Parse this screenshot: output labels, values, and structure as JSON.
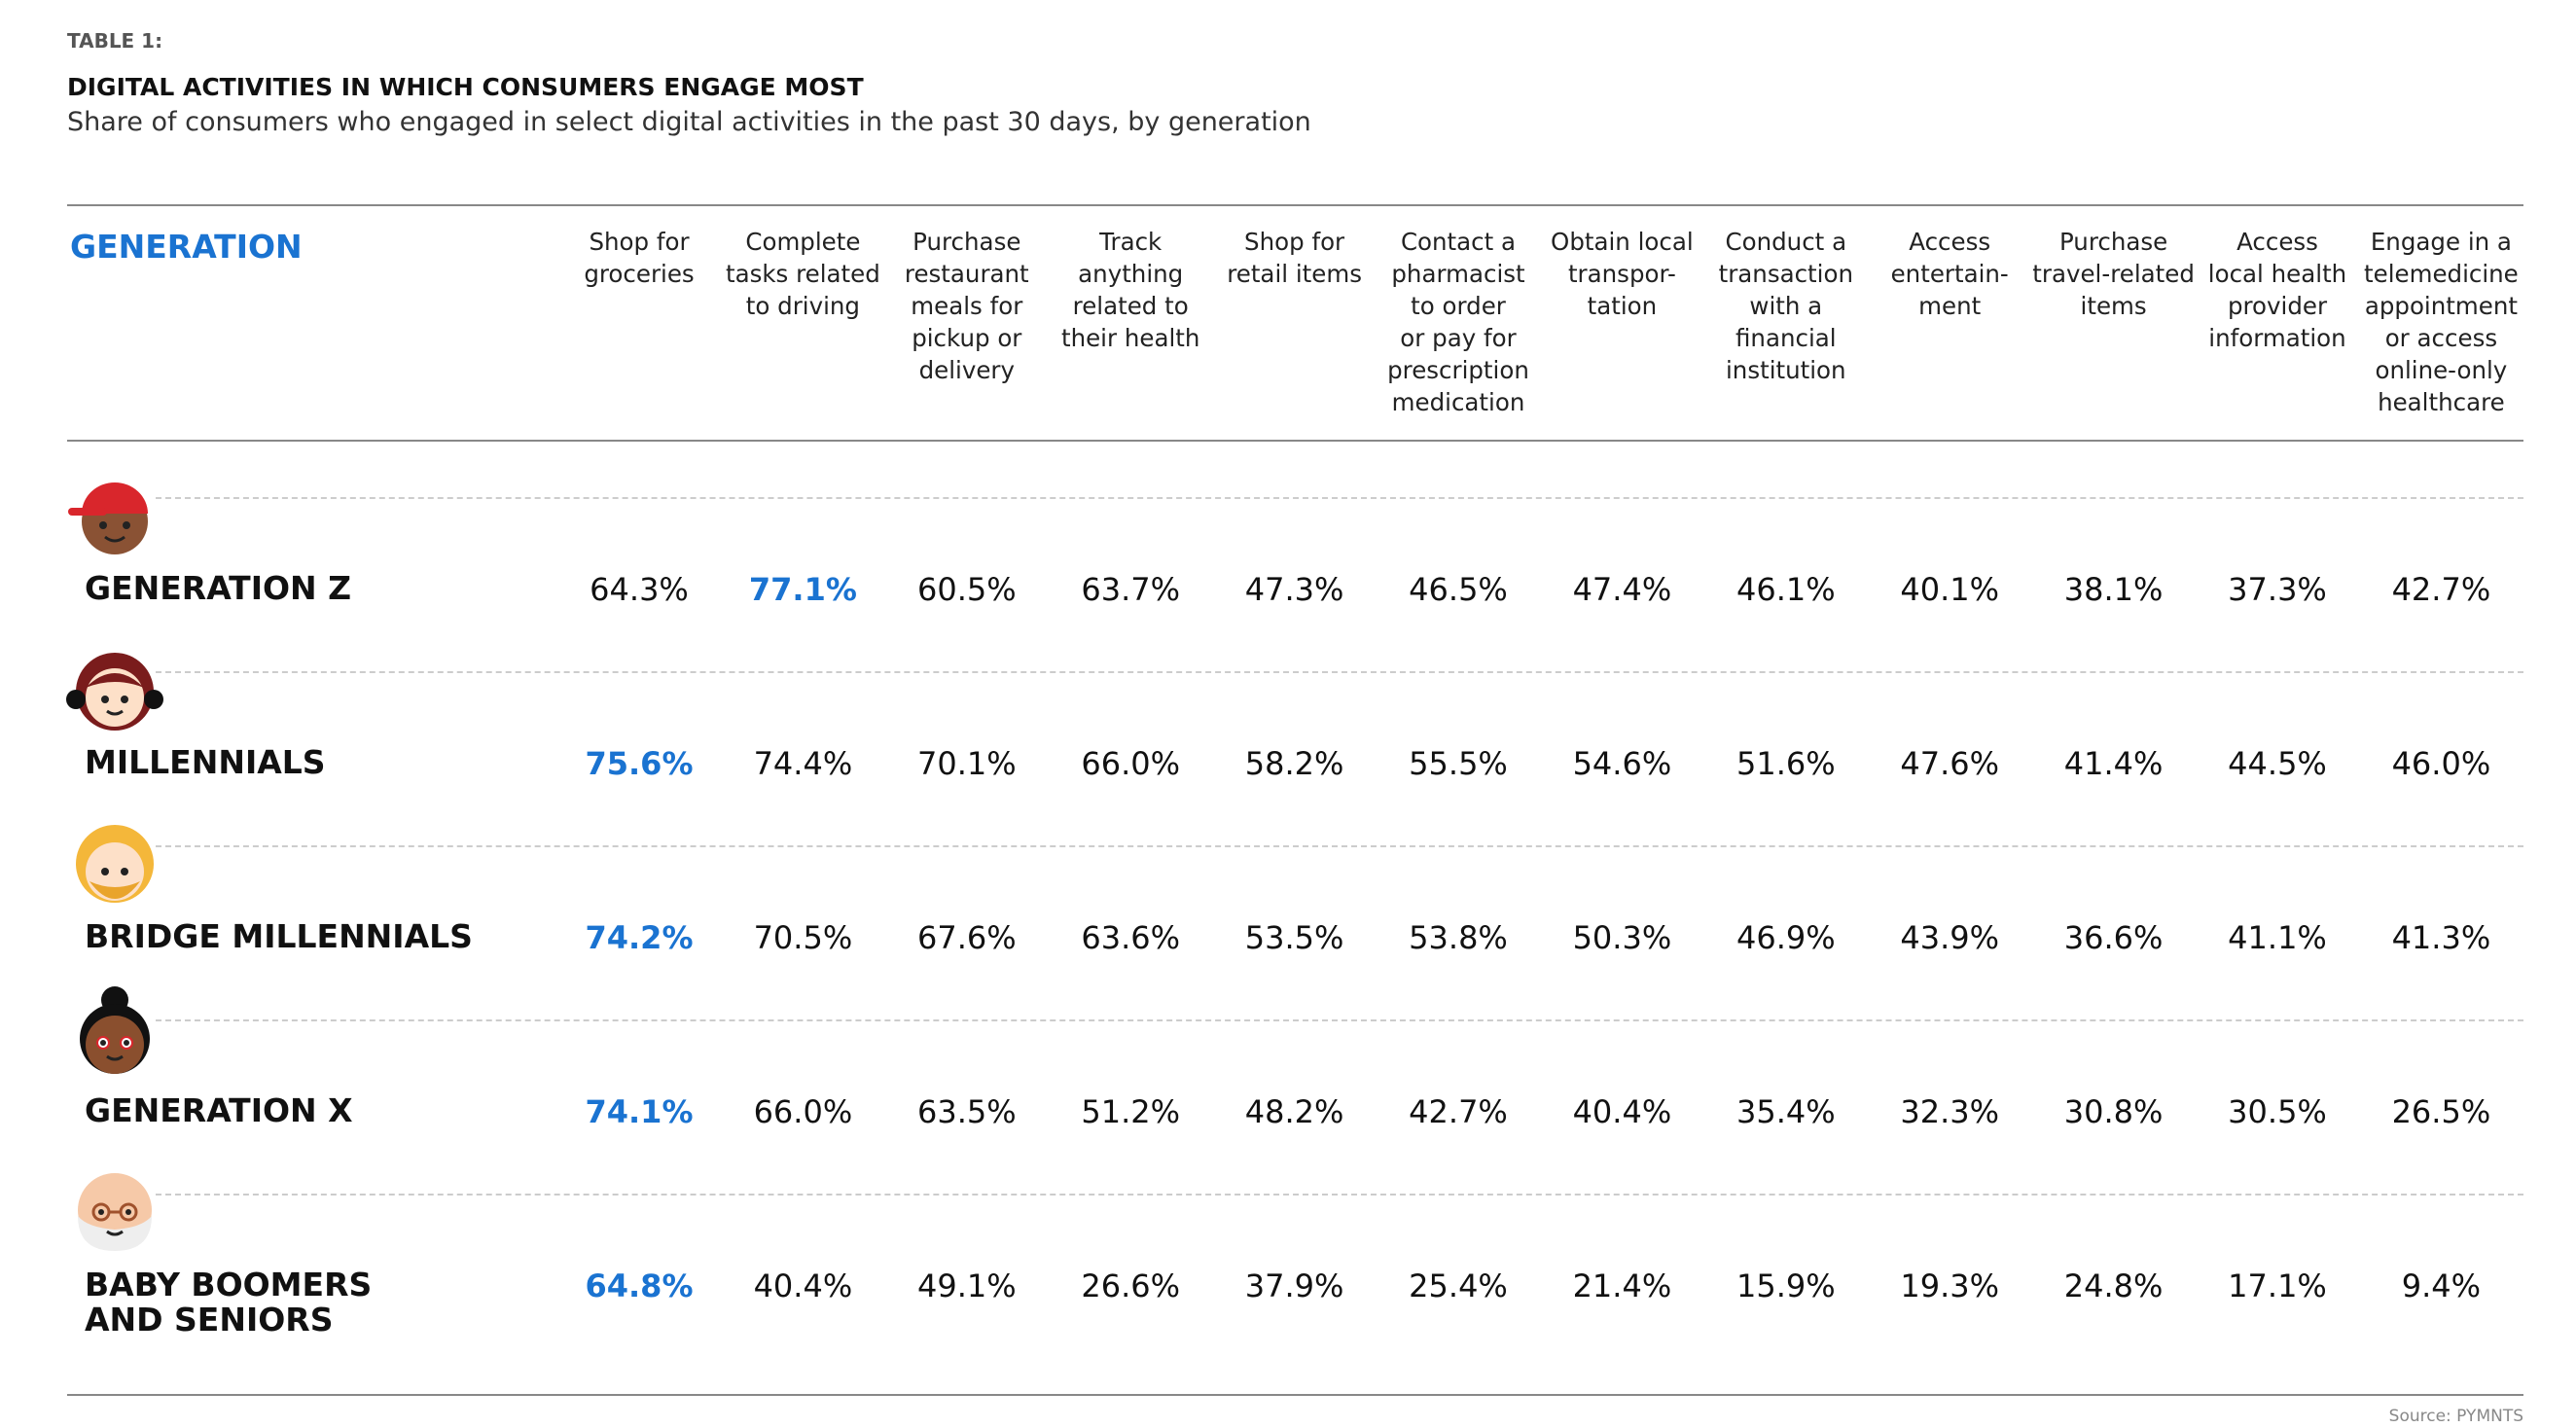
{
  "header": {
    "label": "TABLE 1:",
    "title": "DIGITAL ACTIVITIES IN WHICH CONSUMERS ENGAGE MOST",
    "subtitle": "Share of consumers who engaged in select digital activities in the past 30 days, by generation"
  },
  "table": {
    "row_header": "GENERATION",
    "highlight_color": "#1a73d1",
    "columns": [
      "Shop for\ngroceries",
      "Complete\ntasks related\nto driving",
      "Purchase\nrestaurant\nmeals for\npickup or\ndelivery",
      "Track\nanything\nrelated to\ntheir health",
      "Shop for\nretail items",
      "Contact a\npharmacist\nto order\nor pay for\nprescription\nmedication",
      "Obtain local\ntranspor-\ntation",
      "Conduct a\ntransaction\nwith a\nfinancial\ninstitution",
      "Access\nentertain-\nment",
      "Purchase\ntravel-related\nitems",
      "Access\nlocal health\nprovider\ninformation",
      "Engage in a\ntelemedicine\nappointment\nor access\nonline-only\nhealthcare"
    ],
    "rows": [
      {
        "name": "GENERATION Z",
        "highlight": 1,
        "values": [
          "64.3%",
          "77.1%",
          "60.5%",
          "63.7%",
          "47.3%",
          "46.5%",
          "47.4%",
          "46.1%",
          "40.1%",
          "38.1%",
          "37.3%",
          "42.7%"
        ]
      },
      {
        "name": "MILLENNIALS",
        "highlight": 0,
        "values": [
          "75.6%",
          "74.4%",
          "70.1%",
          "66.0%",
          "58.2%",
          "55.5%",
          "54.6%",
          "51.6%",
          "47.6%",
          "41.4%",
          "44.5%",
          "46.0%"
        ]
      },
      {
        "name": "BRIDGE MILLENNIALS",
        "highlight": 0,
        "values": [
          "74.2%",
          "70.5%",
          "67.6%",
          "63.6%",
          "53.5%",
          "53.8%",
          "50.3%",
          "46.9%",
          "43.9%",
          "36.6%",
          "41.1%",
          "41.3%"
        ]
      },
      {
        "name": "GENERATION X",
        "highlight": 0,
        "values": [
          "74.1%",
          "66.0%",
          "63.5%",
          "51.2%",
          "48.2%",
          "42.7%",
          "40.4%",
          "35.4%",
          "32.3%",
          "30.8%",
          "30.5%",
          "26.5%"
        ]
      },
      {
        "name": "BABY BOOMERS\nAND SENIORS",
        "highlight": 0,
        "values": [
          "64.8%",
          "40.4%",
          "49.1%",
          "26.6%",
          "37.9%",
          "25.4%",
          "21.4%",
          "15.9%",
          "19.3%",
          "24.8%",
          "17.1%",
          "9.4%"
        ]
      }
    ]
  },
  "source": "Source: PYMNTS"
}
